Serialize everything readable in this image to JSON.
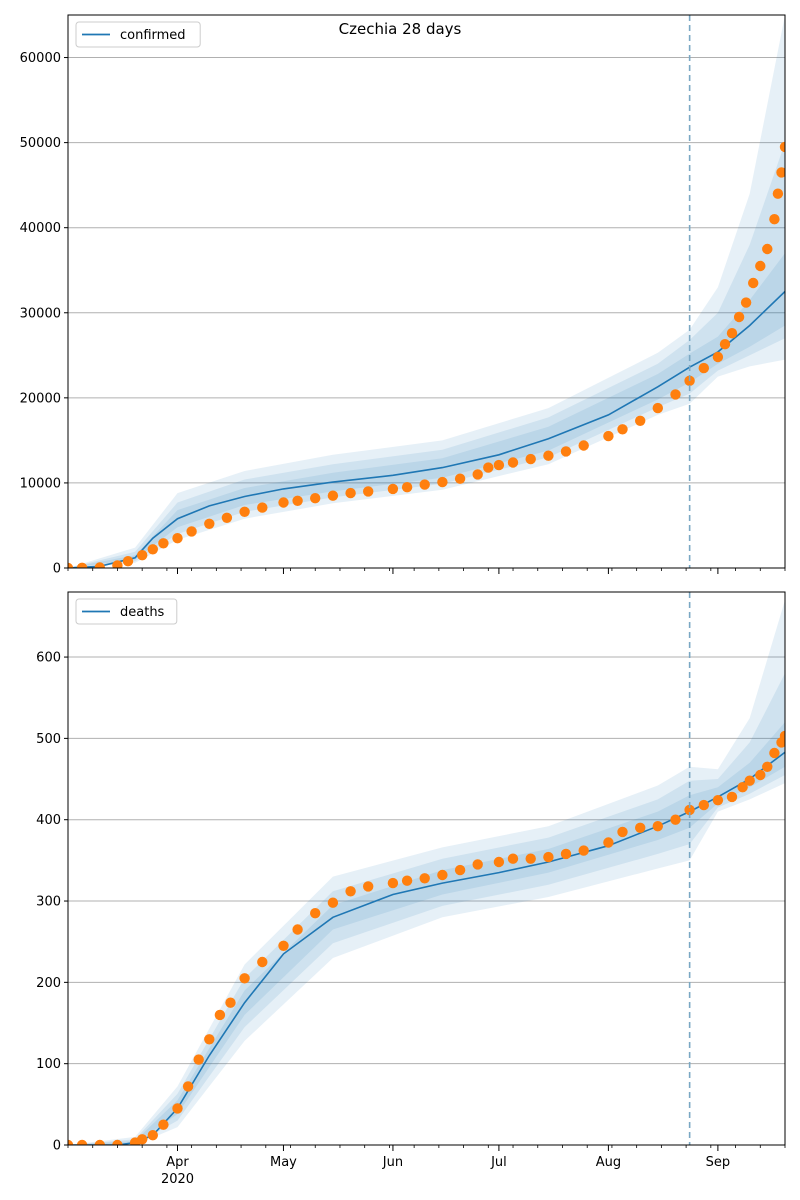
{
  "figure": {
    "title": "Czechia 28 days"
  },
  "colors": {
    "model_line": "#1f77b4",
    "band_fill": "#1f77b4",
    "observed_points": "#ff7f0e",
    "forecast_marker": "#7aa8c4",
    "grid": "#b0b0b0"
  },
  "chart_data": [
    {
      "type": "line",
      "panel": "top",
      "title": "Czechia 28 days",
      "legend": {
        "labels": [
          "confirmed"
        ],
        "placement": "upper-left"
      },
      "xlabel": "",
      "ylabel": "",
      "x_range": [
        "2020-03-01",
        "2020-09-20"
      ],
      "ylim": [
        0,
        65000
      ],
      "yticks": [
        0,
        10000,
        20000,
        30000,
        40000,
        50000,
        60000
      ],
      "ytick_labels": [
        "0",
        "10000",
        "20000",
        "30000",
        "40000",
        "50000",
        "60000"
      ],
      "xticks": [],
      "grid_y": true,
      "forecast_start": "2020-08-24",
      "series": [
        {
          "name": "confirmed",
          "kind": "model_median",
          "x": [
            "2020-03-01",
            "2020-03-10",
            "2020-03-20",
            "2020-03-25",
            "2020-04-01",
            "2020-04-10",
            "2020-04-20",
            "2020-05-01",
            "2020-05-15",
            "2020-06-01",
            "2020-06-15",
            "2020-07-01",
            "2020-07-15",
            "2020-08-01",
            "2020-08-15",
            "2020-08-24",
            "2020-09-01",
            "2020-09-10",
            "2020-09-20"
          ],
          "y": [
            0,
            200,
            1200,
            3500,
            5800,
            7300,
            8400,
            9300,
            10100,
            10900,
            11800,
            13300,
            15200,
            18000,
            21300,
            23600,
            25400,
            28500,
            32500
          ]
        },
        {
          "name": "confirmed interval inner",
          "kind": "band",
          "x": [
            "2020-03-01",
            "2020-03-20",
            "2020-04-01",
            "2020-04-20",
            "2020-05-15",
            "2020-06-15",
            "2020-07-15",
            "2020-08-15",
            "2020-08-24",
            "2020-09-01",
            "2020-09-10",
            "2020-09-20"
          ],
          "lower": [
            0,
            1000,
            4800,
            7400,
            9000,
            10600,
            13800,
            19800,
            21800,
            24000,
            26000,
            28500
          ],
          "upper": [
            0,
            1500,
            6800,
            9400,
            11200,
            12900,
            16600,
            22800,
            25200,
            27200,
            31500,
            37000
          ]
        },
        {
          "name": "confirmed interval middle",
          "kind": "band",
          "x": [
            "2020-03-01",
            "2020-03-20",
            "2020-04-01",
            "2020-04-20",
            "2020-05-15",
            "2020-06-15",
            "2020-07-15",
            "2020-08-15",
            "2020-08-24",
            "2020-09-01",
            "2020-09-10",
            "2020-09-20"
          ],
          "lower": [
            0,
            800,
            4000,
            6600,
            8300,
            9900,
            13000,
            18900,
            20500,
            23200,
            25000,
            27000
          ],
          "upper": [
            0,
            1900,
            7700,
            10400,
            12200,
            13900,
            17700,
            24000,
            26800,
            30000,
            38000,
            50000
          ]
        },
        {
          "name": "confirmed interval outer",
          "kind": "band",
          "x": [
            "2020-03-01",
            "2020-03-20",
            "2020-04-01",
            "2020-04-20",
            "2020-05-15",
            "2020-06-15",
            "2020-07-15",
            "2020-08-15",
            "2020-08-24",
            "2020-09-01",
            "2020-09-10",
            "2020-09-20"
          ],
          "lower": [
            0,
            600,
            3300,
            5800,
            7600,
            9200,
            12200,
            18000,
            19300,
            22500,
            23700,
            24500
          ],
          "upper": [
            0,
            2400,
            8800,
            11400,
            13300,
            15000,
            18800,
            25300,
            28000,
            33000,
            44000,
            65000
          ]
        },
        {
          "name": "confirmed observed",
          "kind": "points",
          "x": [
            "2020-03-01",
            "2020-03-05",
            "2020-03-10",
            "2020-03-15",
            "2020-03-18",
            "2020-03-22",
            "2020-03-25",
            "2020-03-28",
            "2020-04-01",
            "2020-04-05",
            "2020-04-10",
            "2020-04-15",
            "2020-04-20",
            "2020-04-25",
            "2020-05-01",
            "2020-05-05",
            "2020-05-10",
            "2020-05-15",
            "2020-05-20",
            "2020-05-25",
            "2020-06-01",
            "2020-06-05",
            "2020-06-10",
            "2020-06-15",
            "2020-06-20",
            "2020-06-25",
            "2020-06-28",
            "2020-07-01",
            "2020-07-05",
            "2020-07-10",
            "2020-07-15",
            "2020-07-20",
            "2020-07-25",
            "2020-08-01",
            "2020-08-05",
            "2020-08-10",
            "2020-08-15",
            "2020-08-20",
            "2020-08-24",
            "2020-08-28",
            "2020-09-01",
            "2020-09-03",
            "2020-09-05",
            "2020-09-07",
            "2020-09-09",
            "2020-09-11",
            "2020-09-13",
            "2020-09-15",
            "2020-09-17",
            "2020-09-18",
            "2020-09-19",
            "2020-09-20"
          ],
          "y": [
            0,
            20,
            60,
            300,
            800,
            1500,
            2200,
            2900,
            3500,
            4300,
            5200,
            5900,
            6600,
            7100,
            7700,
            7900,
            8200,
            8500,
            8800,
            9000,
            9300,
            9500,
            9800,
            10100,
            10500,
            11000,
            11800,
            12100,
            12400,
            12800,
            13200,
            13700,
            14400,
            15500,
            16300,
            17300,
            18800,
            20400,
            22000,
            23500,
            24800,
            26300,
            27600,
            29500,
            31200,
            33500,
            35500,
            37500,
            41000,
            44000,
            46500,
            49500
          ]
        }
      ]
    },
    {
      "type": "line",
      "panel": "bottom",
      "legend": {
        "labels": [
          "deaths"
        ],
        "placement": "upper-left"
      },
      "xlabel": "",
      "ylabel": "",
      "x_range": [
        "2020-03-01",
        "2020-09-20"
      ],
      "ylim": [
        0,
        680
      ],
      "yticks": [
        0,
        100,
        200,
        300,
        400,
        500,
        600
      ],
      "ytick_labels": [
        "0",
        "100",
        "200",
        "300",
        "400",
        "500",
        "600"
      ],
      "xticks": [
        "2020-04-01",
        "2020-05-01",
        "2020-06-01",
        "2020-07-01",
        "2020-08-01",
        "2020-09-01"
      ],
      "xtick_labels": [
        "Apr\n2020",
        "May",
        "Jun",
        "Jul",
        "Aug",
        "Sep"
      ],
      "grid_y": true,
      "forecast_start": "2020-08-24",
      "series": [
        {
          "name": "deaths",
          "kind": "model_median",
          "x": [
            "2020-03-01",
            "2020-03-15",
            "2020-03-20",
            "2020-03-25",
            "2020-04-01",
            "2020-04-10",
            "2020-04-20",
            "2020-05-01",
            "2020-05-15",
            "2020-06-01",
            "2020-06-15",
            "2020-07-01",
            "2020-07-15",
            "2020-08-01",
            "2020-08-15",
            "2020-08-24",
            "2020-09-01",
            "2020-09-10",
            "2020-09-20"
          ],
          "y": [
            0,
            0,
            3,
            12,
            45,
            110,
            175,
            235,
            280,
            308,
            322,
            335,
            348,
            368,
            392,
            410,
            428,
            450,
            483
          ]
        },
        {
          "name": "deaths interval inner",
          "kind": "band",
          "x": [
            "2020-03-01",
            "2020-03-20",
            "2020-04-01",
            "2020-04-20",
            "2020-05-15",
            "2020-06-15",
            "2020-07-15",
            "2020-08-15",
            "2020-08-24",
            "2020-09-01",
            "2020-09-10",
            "2020-09-20"
          ],
          "lower": [
            0,
            2,
            38,
            160,
            265,
            308,
            335,
            375,
            390,
            420,
            440,
            465
          ],
          "upper": [
            0,
            5,
            55,
            190,
            295,
            338,
            364,
            410,
            430,
            440,
            470,
            520
          ]
        },
        {
          "name": "deaths interval middle",
          "kind": "band",
          "x": [
            "2020-03-01",
            "2020-03-20",
            "2020-04-01",
            "2020-04-20",
            "2020-05-15",
            "2020-06-15",
            "2020-07-15",
            "2020-08-15",
            "2020-08-24",
            "2020-09-01",
            "2020-09-10",
            "2020-09-20"
          ],
          "lower": [
            0,
            1,
            30,
            145,
            248,
            294,
            320,
            358,
            370,
            415,
            432,
            455
          ],
          "upper": [
            0,
            7,
            63,
            205,
            312,
            352,
            378,
            425,
            448,
            450,
            495,
            580
          ]
        },
        {
          "name": "deaths interval outer",
          "kind": "band",
          "x": [
            "2020-03-01",
            "2020-03-20",
            "2020-04-01",
            "2020-04-20",
            "2020-05-15",
            "2020-06-15",
            "2020-07-15",
            "2020-08-15",
            "2020-08-24",
            "2020-09-01",
            "2020-09-10",
            "2020-09-20"
          ],
          "lower": [
            0,
            0,
            22,
            128,
            230,
            280,
            305,
            340,
            350,
            410,
            425,
            445
          ],
          "upper": [
            0,
            10,
            72,
            222,
            330,
            366,
            392,
            442,
            465,
            462,
            525,
            670
          ]
        },
        {
          "name": "deaths observed",
          "kind": "points",
          "x": [
            "2020-03-01",
            "2020-03-05",
            "2020-03-10",
            "2020-03-15",
            "2020-03-20",
            "2020-03-22",
            "2020-03-25",
            "2020-03-28",
            "2020-04-01",
            "2020-04-04",
            "2020-04-07",
            "2020-04-10",
            "2020-04-13",
            "2020-04-16",
            "2020-04-20",
            "2020-04-25",
            "2020-05-01",
            "2020-05-05",
            "2020-05-10",
            "2020-05-15",
            "2020-05-20",
            "2020-05-25",
            "2020-06-01",
            "2020-06-05",
            "2020-06-10",
            "2020-06-15",
            "2020-06-20",
            "2020-06-25",
            "2020-07-01",
            "2020-07-05",
            "2020-07-10",
            "2020-07-15",
            "2020-07-20",
            "2020-07-25",
            "2020-08-01",
            "2020-08-05",
            "2020-08-10",
            "2020-08-15",
            "2020-08-20",
            "2020-08-24",
            "2020-08-28",
            "2020-09-01",
            "2020-09-05",
            "2020-09-08",
            "2020-09-10",
            "2020-09-13",
            "2020-09-15",
            "2020-09-17",
            "2020-09-19",
            "2020-09-20"
          ],
          "y": [
            0,
            0,
            0,
            0,
            3,
            7,
            12,
            25,
            45,
            72,
            105,
            130,
            160,
            175,
            205,
            225,
            245,
            265,
            285,
            298,
            312,
            318,
            322,
            325,
            328,
            332,
            338,
            345,
            348,
            352,
            352,
            354,
            358,
            362,
            372,
            385,
            390,
            392,
            400,
            412,
            418,
            424,
            428,
            440,
            448,
            455,
            465,
            482,
            495,
            503
          ]
        }
      ]
    }
  ]
}
